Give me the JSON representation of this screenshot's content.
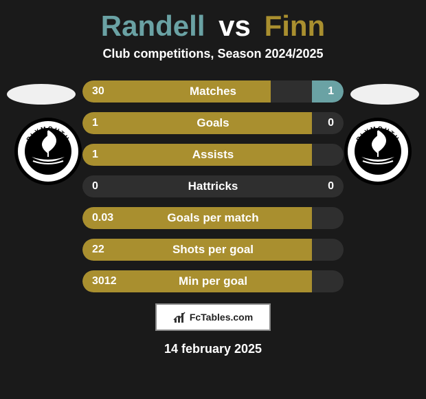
{
  "colors": {
    "player1": "#6aa2a4",
    "player2": "#a98f2f",
    "bar_bg": "#2f2f2f",
    "side_ellipse": "#f0f0f0",
    "logo_ring_outer": "#000000",
    "logo_ring_inner": "#ffffff",
    "footer_text": "#222222"
  },
  "title": {
    "player1": "Randell",
    "vs": "vs",
    "player2": "Finn"
  },
  "subtitle": "Club competitions, Season 2024/2025",
  "stats": [
    {
      "label": "Matches",
      "left_val": "30",
      "right_val": "1",
      "left_pct": 72,
      "right_pct": 12
    },
    {
      "label": "Goals",
      "left_val": "1",
      "right_val": "0",
      "left_pct": 88,
      "right_pct": 0
    },
    {
      "label": "Assists",
      "left_val": "1",
      "right_val": "",
      "left_pct": 88,
      "right_pct": 0
    },
    {
      "label": "Hattricks",
      "left_val": "0",
      "right_val": "0",
      "left_pct": 0,
      "right_pct": 0
    },
    {
      "label": "Goals per match",
      "left_val": "0.03",
      "right_val": "",
      "left_pct": 88,
      "right_pct": 0
    },
    {
      "label": "Shots per goal",
      "left_val": "22",
      "right_val": "",
      "left_pct": 88,
      "right_pct": 0
    },
    {
      "label": "Min per goal",
      "left_val": "3012",
      "right_val": "",
      "left_pct": 88,
      "right_pct": 0
    }
  ],
  "footer": {
    "brand": "FcTables.com"
  },
  "date": "14 february 2025",
  "club_logo": {
    "text": "PLYMOUTH"
  }
}
